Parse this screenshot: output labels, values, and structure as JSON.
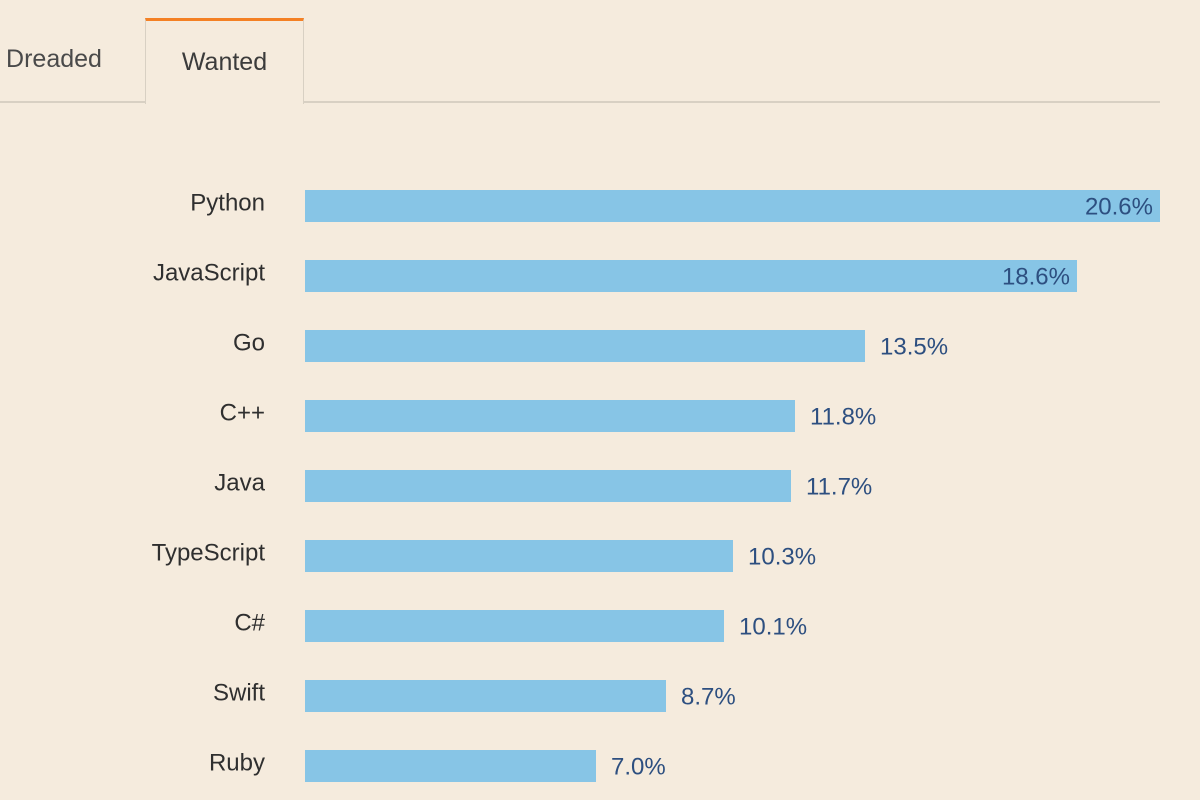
{
  "tabs": [
    {
      "label": "Dreaded",
      "active": false
    },
    {
      "label": "Wanted",
      "active": true
    }
  ],
  "colors": {
    "background": "#f5ebdd",
    "bar": "#87c5e6",
    "active_tab_accent": "#f48024",
    "value_text": "#2d4f80"
  },
  "chart_data": {
    "type": "bar",
    "orientation": "horizontal",
    "categories": [
      "Python",
      "JavaScript",
      "Go",
      "C++",
      "Java",
      "TypeScript",
      "C#",
      "Swift",
      "Ruby"
    ],
    "values": [
      20.6,
      18.6,
      13.5,
      11.8,
      11.7,
      10.3,
      10.1,
      8.7,
      7.0
    ],
    "value_labels": [
      "20.6%",
      "18.6%",
      "13.5%",
      "11.8%",
      "11.7%",
      "10.3%",
      "10.1%",
      "8.7%",
      "7.0%"
    ],
    "xlim": [
      0,
      20.6
    ],
    "title": "",
    "xlabel": "",
    "ylabel": "",
    "grid": false,
    "unit": "%"
  }
}
